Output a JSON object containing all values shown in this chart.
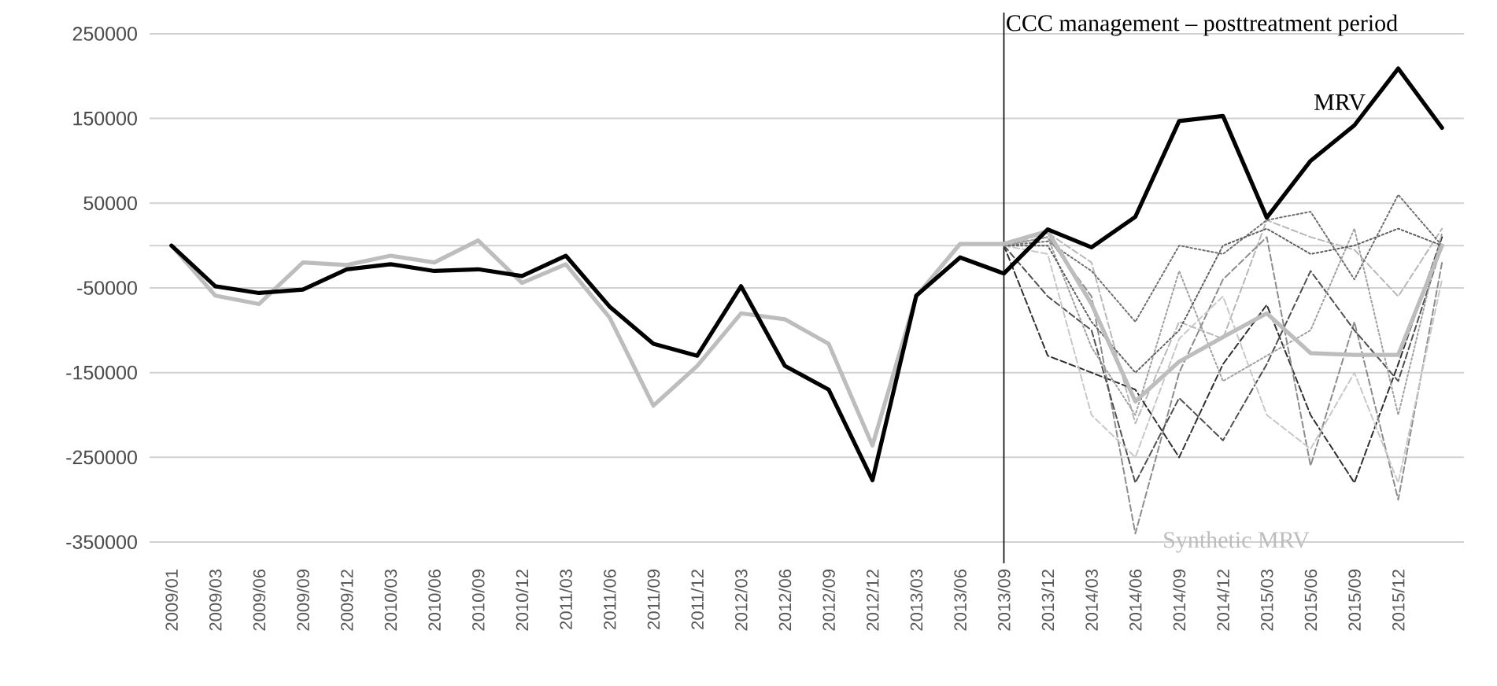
{
  "chart_data": {
    "type": "line",
    "categories": [
      "2009/01",
      "2009/03",
      "2009/06",
      "2009/09",
      "2009/12",
      "2010/03",
      "2010/06",
      "2010/09",
      "2010/12",
      "2011/03",
      "2011/06",
      "2011/09",
      "2011/12",
      "2012/03",
      "2012/06",
      "2012/09",
      "2012/12",
      "2013/03",
      "2013/06",
      "2013/09",
      "2013/12",
      "2014/03",
      "2014/06",
      "2014/09",
      "2014/12",
      "2015/03",
      "2015/06",
      "2015/09",
      "2015/12",
      null
    ],
    "series": [
      {
        "color": "#b8b8b8",
        "line_style": "dashed",
        "values": [
          null,
          null,
          null,
          null,
          null,
          null,
          null,
          null,
          null,
          null,
          null,
          null,
          null,
          null,
          null,
          null,
          null,
          null,
          null,
          0,
          15000,
          -20000,
          -210000,
          -90000,
          -110000,
          30000,
          10000,
          -5000,
          -60000,
          20000
        ]
      },
      {
        "color": "#303030",
        "line_style": "dashed",
        "values": [
          null,
          null,
          null,
          null,
          null,
          null,
          null,
          null,
          null,
          null,
          null,
          null,
          null,
          null,
          null,
          null,
          null,
          null,
          null,
          0,
          -130000,
          -150000,
          -170000,
          -250000,
          -140000,
          -70000,
          -200000,
          -280000,
          -140000,
          10000
        ]
      },
      {
        "color": "#8c8c8c",
        "line_style": "dashed",
        "values": [
          null,
          null,
          null,
          null,
          null,
          null,
          null,
          null,
          null,
          null,
          null,
          null,
          null,
          null,
          null,
          null,
          null,
          null,
          null,
          0,
          10000,
          -60000,
          -340000,
          -150000,
          -40000,
          10000,
          -260000,
          -90000,
          -300000,
          -20000
        ]
      },
      {
        "color": "#707070",
        "line_style": "dotted",
        "values": [
          null,
          null,
          null,
          null,
          null,
          null,
          null,
          null,
          null,
          null,
          null,
          null,
          null,
          null,
          null,
          null,
          null,
          null,
          null,
          0,
          5000,
          -30000,
          -90000,
          0,
          -10000,
          30000,
          40000,
          -40000,
          60000,
          0
        ]
      },
      {
        "color": "#505050",
        "line_style": "dashed",
        "values": [
          null,
          null,
          null,
          null,
          null,
          null,
          null,
          null,
          null,
          null,
          null,
          null,
          null,
          null,
          null,
          null,
          null,
          null,
          null,
          0,
          -60000,
          -100000,
          -280000,
          -180000,
          -230000,
          -140000,
          -30000,
          -100000,
          -160000,
          0
        ]
      },
      {
        "color": "#a0a0a0",
        "line_style": "dotted",
        "values": [
          null,
          null,
          null,
          null,
          null,
          null,
          null,
          null,
          null,
          null,
          null,
          null,
          null,
          null,
          null,
          null,
          null,
          null,
          null,
          0,
          10000,
          -120000,
          -200000,
          -30000,
          -160000,
          -130000,
          -100000,
          20000,
          -200000,
          15000
        ]
      },
      {
        "color": "#c8c8c8",
        "line_style": "dashed",
        "values": [
          null,
          null,
          null,
          null,
          null,
          null,
          null,
          null,
          null,
          null,
          null,
          null,
          null,
          null,
          null,
          null,
          null,
          null,
          null,
          0,
          -10000,
          -200000,
          -250000,
          -110000,
          -60000,
          -200000,
          -240000,
          -150000,
          -280000,
          -40000
        ]
      },
      {
        "color": "#606060",
        "line_style": "dotted",
        "values": [
          null,
          null,
          null,
          null,
          null,
          null,
          null,
          null,
          null,
          null,
          null,
          null,
          null,
          null,
          null,
          null,
          null,
          null,
          null,
          0,
          0,
          -90000,
          -150000,
          -100000,
          0,
          20000,
          -10000,
          0,
          20000,
          0
        ]
      },
      {
        "name": "Synthetic MRV",
        "color": "#bdbdbd",
        "line_style": "solid",
        "values": [
          0,
          -59000,
          -69000,
          -20000,
          -23000,
          -12000,
          -20000,
          6000,
          -44000,
          -22000,
          -85000,
          -189000,
          -142000,
          -80000,
          -87000,
          -116000,
          -236000,
          -60000,
          2000,
          2000,
          17000,
          -69000,
          -184000,
          -137000,
          -108000,
          -80000,
          -127000,
          -129000,
          -129000,
          0
        ]
      },
      {
        "name": "MRV",
        "color": "#000000",
        "line_style": "solid",
        "values": [
          0,
          -48000,
          -56000,
          -52000,
          -28000,
          -22000,
          -30000,
          -28000,
          -36000,
          -12000,
          -72000,
          -116000,
          -130000,
          -48000,
          -142000,
          -170000,
          -277000,
          -59000,
          -14000,
          -33000,
          19000,
          -2000,
          34000,
          147000,
          153000,
          33000,
          100000,
          142000,
          209000,
          139000
        ]
      }
    ],
    "ylim": [
      -375000,
      275000
    ],
    "yticks": [
      -350000,
      -250000,
      -150000,
      -50000,
      50000,
      150000,
      250000
    ],
    "grid": "y",
    "ref_lines": [
      {
        "axis": "x",
        "value": "2013/09",
        "label": "CCC management – posttreatment period",
        "color": "#000000"
      }
    ]
  }
}
